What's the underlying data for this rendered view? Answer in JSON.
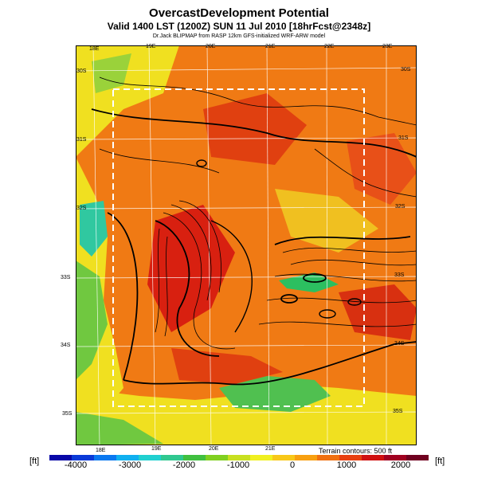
{
  "header": {
    "title": "OvercastDevelopment Potential",
    "valid_line": "Valid 1400 LST (1200Z) SUN 11 Jul 2010 [18hrFcst@2348z]",
    "model_line": "Dr.Jack BLIPMAP from RASP 12km GFS-initialized WRF-ARW model"
  },
  "map": {
    "lon_top": [
      "18E",
      "19E",
      "20E",
      "21E",
      "22E",
      "23E"
    ],
    "lon_bottom": [
      "18E",
      "19E",
      "20E",
      "21E"
    ],
    "lat_left": [
      "30S",
      "31S",
      "32S",
      "33S",
      "34S",
      "35S"
    ],
    "lat_right": [
      "30S",
      "31S",
      "32S",
      "33S",
      "34S",
      "35S"
    ],
    "terrain_note": "Terrain contours: 500 ft"
  },
  "colorbar": {
    "unit_label": "[ft]",
    "ticks": [
      "-4000",
      "-3000",
      "-2000",
      "-1000",
      "0",
      "1000",
      "2000"
    ],
    "colors": [
      "#0808a8",
      "#0a3ad8",
      "#0a78f0",
      "#10b0f0",
      "#20d0d0",
      "#30c890",
      "#40c040",
      "#80d020",
      "#c8e020",
      "#f0f020",
      "#f8c818",
      "#f8a010",
      "#f07010",
      "#e84010",
      "#d01010",
      "#a00020",
      "#700020"
    ]
  }
}
